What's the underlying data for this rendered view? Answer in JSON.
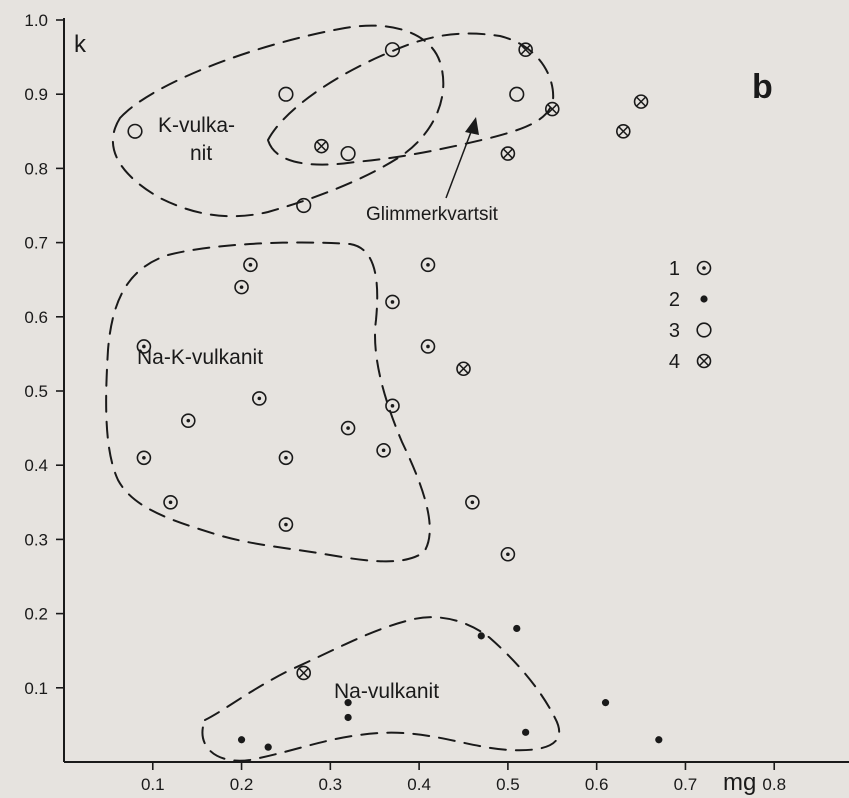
{
  "chart_data": {
    "type": "scatter",
    "panel_letter": "b",
    "xlabel": "mg",
    "ylabel": "k",
    "xlim": [
      0,
      0.9
    ],
    "ylim": [
      0,
      1.0
    ],
    "x_ticks": [
      "0.1",
      "0.2",
      "0.3",
      "0.4",
      "0.5",
      "0.6",
      "0.7",
      "0.8"
    ],
    "y_ticks": [
      "0.1",
      "0.2",
      "0.3",
      "0.4",
      "0.5",
      "0.6",
      "0.7",
      "0.8",
      "0.9",
      "1.0"
    ],
    "legend_position": "right",
    "legend": [
      {
        "label": "1",
        "symbol": "dotted-circle"
      },
      {
        "label": "2",
        "symbol": "dot"
      },
      {
        "label": "3",
        "symbol": "circle"
      },
      {
        "label": "4",
        "symbol": "crossed-circle"
      }
    ],
    "series": [
      {
        "legend_label": "1",
        "symbol": "dotted-circle",
        "points": [
          [
            0.21,
            0.67
          ],
          [
            0.2,
            0.64
          ],
          [
            0.41,
            0.67
          ],
          [
            0.37,
            0.62
          ],
          [
            0.09,
            0.56
          ],
          [
            0.41,
            0.56
          ],
          [
            0.22,
            0.49
          ],
          [
            0.37,
            0.48
          ],
          [
            0.14,
            0.46
          ],
          [
            0.32,
            0.45
          ],
          [
            0.09,
            0.41
          ],
          [
            0.25,
            0.41
          ],
          [
            0.36,
            0.42
          ],
          [
            0.12,
            0.35
          ],
          [
            0.46,
            0.35
          ],
          [
            0.25,
            0.32
          ],
          [
            0.5,
            0.28
          ]
        ]
      },
      {
        "legend_label": "2",
        "symbol": "dot",
        "points": [
          [
            0.47,
            0.17
          ],
          [
            0.51,
            0.18
          ],
          [
            0.32,
            0.08
          ],
          [
            0.32,
            0.06
          ],
          [
            0.61,
            0.08
          ],
          [
            0.2,
            0.03
          ],
          [
            0.23,
            0.02
          ],
          [
            0.52,
            0.04
          ],
          [
            0.67,
            0.03
          ]
        ]
      },
      {
        "legend_label": "3",
        "symbol": "circle",
        "points": [
          [
            0.37,
            0.96
          ],
          [
            0.25,
            0.9
          ],
          [
            0.08,
            0.85
          ],
          [
            0.51,
            0.9
          ],
          [
            0.32,
            0.82
          ],
          [
            0.27,
            0.75
          ]
        ]
      },
      {
        "legend_label": "4",
        "symbol": "crossed-circle",
        "points": [
          [
            0.52,
            0.96
          ],
          [
            0.55,
            0.88
          ],
          [
            0.65,
            0.89
          ],
          [
            0.63,
            0.85
          ],
          [
            0.29,
            0.83
          ],
          [
            0.5,
            0.82
          ],
          [
            0.45,
            0.53
          ],
          [
            0.27,
            0.12
          ]
        ]
      }
    ],
    "regions": [
      {
        "label_lines": [
          "K-vulka-",
          "nit"
        ]
      },
      {
        "label_lines": [
          "Na-K-vulkanit"
        ]
      },
      {
        "label_lines": [
          "Na-vulkanit"
        ]
      }
    ],
    "annotation": "Glimmerkvartsit"
  }
}
